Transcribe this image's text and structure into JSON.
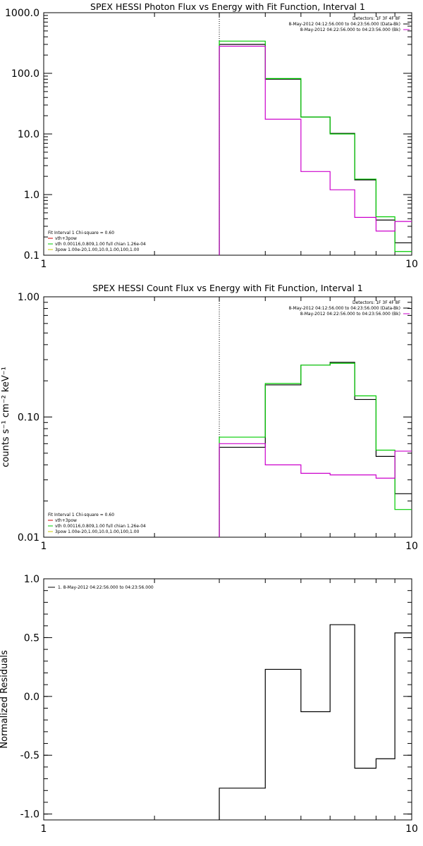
{
  "chart_data": [
    {
      "type": "line",
      "title": "SPEX HESSI Photon Flux vs Energy with Fit Function, Interval 1",
      "xlabel": "",
      "ylabel": "",
      "xscale": "log",
      "yscale": "log",
      "xlim": [
        1,
        10
      ],
      "ylim": [
        0.1,
        1000
      ],
      "xtick_labels": [
        {
          "value": 1,
          "label": "1"
        },
        {
          "value": 10,
          "label": "10"
        }
      ],
      "ytick_labels": [
        {
          "value": 0.1,
          "label": "0.1"
        },
        {
          "value": 1,
          "label": "1.0"
        },
        {
          "value": 10,
          "label": "10.0"
        },
        {
          "value": 100,
          "label": "100.0"
        },
        {
          "value": 1000,
          "label": "1000.0"
        }
      ],
      "vline": 3,
      "legend_top": [
        "Detectors: 1F 3F 4F 8F",
        "8-May-2012 04:12:56.000 to 04:23:56.000 (Data-Bk)",
        "8-May-2012 04:22:56.000 to 04:23:56.000 (Bk)"
      ],
      "legend_bottom": [
        "Fit Interval 1   Chi-square = 0.60",
        "vth+3pow",
        "vth 0.00116,0.809,1.00  full chian 1.26e-04",
        "3pow 1.00e-20,1.00,10.0,1.00,100,1.00"
      ],
      "series": [
        {
          "color": "#000000",
          "edges": [
            3,
            4,
            5,
            6,
            7,
            8,
            9,
            10
          ],
          "values": [
            300,
            80,
            19,
            10.2,
            1.75,
            0.38,
            0.16
          ]
        },
        {
          "color": "#00cc00",
          "edges": [
            3,
            4,
            5,
            6,
            7,
            8,
            9,
            10
          ],
          "values": [
            340,
            82,
            19,
            10.0,
            1.8,
            0.43,
            0.115
          ]
        },
        {
          "color": "#cc00cc",
          "edges": [
            3,
            4,
            5,
            6,
            7,
            8,
            9,
            10
          ],
          "values": [
            280,
            17.5,
            2.4,
            1.2,
            0.42,
            0.25,
            0.36
          ]
        }
      ]
    },
    {
      "type": "line",
      "title": "SPEX HESSI Count Flux vs Energy with Fit Function, Interval 1",
      "xlabel": "",
      "ylabel": "counts s⁻¹ cm⁻² keV⁻¹",
      "xscale": "log",
      "yscale": "log",
      "xlim": [
        1,
        10
      ],
      "ylim": [
        0.01,
        1
      ],
      "xtick_labels": [
        {
          "value": 1,
          "label": "1"
        },
        {
          "value": 10,
          "label": "10"
        }
      ],
      "ytick_labels": [
        {
          "value": 0.01,
          "label": "0.01"
        },
        {
          "value": 0.1,
          "label": "0.10"
        },
        {
          "value": 1,
          "label": "1.00"
        }
      ],
      "vline": 3,
      "legend_top": [
        "Detectors: 1F 3F 4F 8F",
        "8-May-2012 04:12:56.000 to 04:23:56.000 (Data-Bk)",
        "8-May-2012 04:22:56.000 to 04:23:56.000 (Bk)"
      ],
      "legend_bottom": [
        "Fit Interval 1   Chi-square = 0.60",
        "vth+3pow",
        "vth 0.00116,0.809,1.00  full chian 1.26e-04",
        "3pow 1.00e-20,1.00,10.0,1.00,100,1.00"
      ],
      "series": [
        {
          "color": "#000000",
          "edges": [
            3,
            4,
            5,
            6,
            7,
            8,
            9,
            10
          ],
          "values": [
            0.056,
            0.185,
            0.27,
            0.285,
            0.14,
            0.047,
            0.023
          ]
        },
        {
          "color": "#00cc00",
          "edges": [
            3,
            4,
            5,
            6,
            7,
            8,
            9,
            10
          ],
          "values": [
            0.068,
            0.19,
            0.27,
            0.28,
            0.15,
            0.053,
            0.017
          ]
        },
        {
          "color": "#cc00cc",
          "edges": [
            3,
            4,
            5,
            6,
            7,
            8,
            9,
            10
          ],
          "values": [
            0.06,
            0.04,
            0.034,
            0.033,
            0.033,
            0.031,
            0.052
          ]
        }
      ]
    },
    {
      "type": "line",
      "title": "",
      "xlabel": "",
      "ylabel": "Normalized Residuals",
      "xscale": "log",
      "yscale": "linear",
      "xlim": [
        1,
        10
      ],
      "ylim": [
        -1.05,
        1.0
      ],
      "xtick_labels": [
        {
          "value": 1,
          "label": "1"
        },
        {
          "value": 10,
          "label": "10"
        }
      ],
      "ytick_labels": [
        {
          "value": -1,
          "label": "-1.0"
        },
        {
          "value": -0.5,
          "label": "-0.5"
        },
        {
          "value": 0,
          "label": "0.0"
        },
        {
          "value": 0.5,
          "label": "0.5"
        },
        {
          "value": 1,
          "label": "1.0"
        }
      ],
      "legend_top": [
        "1.  8-May-2012 04:22:56.000 to 04:23:56.000"
      ],
      "series": [
        {
          "color": "#000000",
          "edges": [
            3,
            4,
            5,
            6,
            7,
            8,
            9,
            10
          ],
          "values": [
            -0.78,
            0.23,
            -0.13,
            0.61,
            -0.61,
            -0.53,
            0.54
          ]
        }
      ]
    }
  ]
}
